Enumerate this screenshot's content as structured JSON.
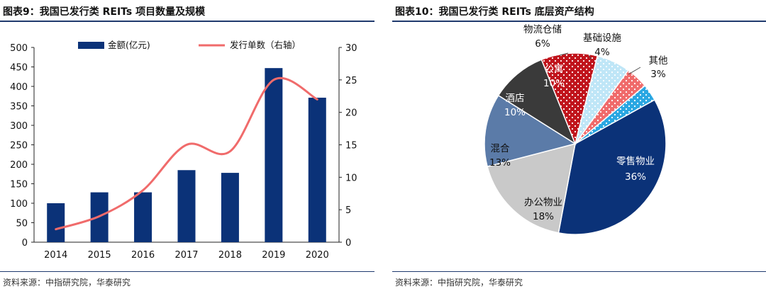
{
  "left_panel": {
    "title": "图表9：我国已发行类 REITs 项目数量及规模",
    "source": "资料来源：中指研究院，华泰研究"
  },
  "right_panel": {
    "title": "图表10：我国已发行类 REITs 底层资产结构",
    "source": "资料来源：中指研究院，华泰研究"
  },
  "colors": {
    "navy": "#0b3278",
    "salmon": "#f06b6b",
    "rule": "#1f3a6e"
  },
  "chart_data": [
    {
      "type": "bar",
      "categories": [
        "2014",
        "2015",
        "2016",
        "2017",
        "2018",
        "2019",
        "2020"
      ],
      "series": [
        {
          "name": "金额(亿元)",
          "type": "bar",
          "axis": "left",
          "color": "#0b3278",
          "values": [
            100,
            128,
            128,
            185,
            178,
            447,
            371
          ]
        },
        {
          "name": "发行单数（右轴）",
          "type": "line",
          "axis": "right",
          "color": "#f06b6b",
          "values": [
            2,
            4,
            8,
            15,
            14,
            25,
            22
          ]
        }
      ],
      "ylim": [
        0,
        500
      ],
      "y_ticks": [
        "0",
        "50",
        "100",
        "150",
        "200",
        "250",
        "300",
        "350",
        "400",
        "450",
        "500"
      ],
      "y2lim": [
        0,
        30
      ],
      "y2_ticks": [
        "0",
        "5",
        "10",
        "15",
        "20",
        "25",
        "30"
      ],
      "legend": "top",
      "grid": false
    },
    {
      "type": "pie",
      "slices": [
        {
          "label": "零售物业",
          "value": 36,
          "pct": "36%",
          "color": "#0b3278",
          "pattern": "solid",
          "label_color": "#ffffff"
        },
        {
          "label": "办公物业",
          "value": 18,
          "pct": "18%",
          "color": "#c9c9c9",
          "pattern": "solid",
          "label_color": "#111111"
        },
        {
          "label": "混合",
          "value": 13,
          "pct": "13%",
          "color": "#5b7ba8",
          "pattern": "solid",
          "label_color": "#111111"
        },
        {
          "label": "酒店",
          "value": 10,
          "pct": "10%",
          "color": "#3a3a3a",
          "pattern": "solid",
          "label_color": "#ffffff"
        },
        {
          "label": "公寓",
          "value": 10,
          "pct": "10%",
          "color": "#c0141c",
          "pattern": "dots",
          "label_color": "#ffffff"
        },
        {
          "label": "物流仓储",
          "value": 6,
          "pct": "6%",
          "color": "#bfe6f7",
          "pattern": "dots",
          "label_color": "#111111"
        },
        {
          "label": "基础设施",
          "value": 4,
          "pct": "4%",
          "color": "#f06b6b",
          "pattern": "dots",
          "label_color": "#111111"
        },
        {
          "label": "其他",
          "value": 3,
          "pct": "3%",
          "color": "#2aa7e2",
          "pattern": "dots",
          "label_color": "#111111"
        }
      ]
    }
  ]
}
